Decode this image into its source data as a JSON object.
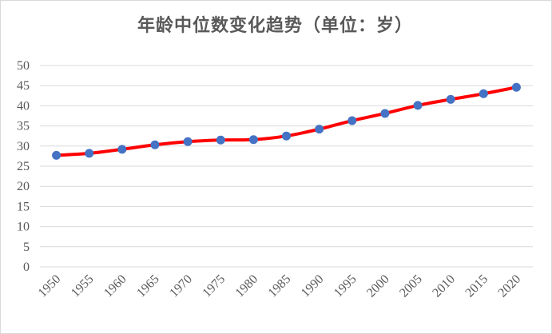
{
  "chart_data": {
    "type": "line",
    "title": "年龄中位数变化趋势（单位：岁）",
    "xlabel": "",
    "ylabel": "",
    "categories": [
      "1950",
      "1955",
      "1960",
      "1965",
      "1970",
      "1975",
      "1980",
      "1985",
      "1990",
      "1995",
      "2000",
      "2005",
      "2010",
      "2015",
      "2020"
    ],
    "series": [
      {
        "values": [
          27.7,
          28.2,
          29.2,
          30.3,
          31.1,
          31.5,
          31.6,
          32.5,
          34.2,
          36.3,
          38.1,
          40.1,
          41.6,
          43.0,
          44.6
        ]
      }
    ],
    "ylim": [
      0,
      50
    ],
    "yticks": [
      0,
      5,
      10,
      15,
      20,
      25,
      30,
      35,
      40,
      45,
      50
    ],
    "grid": true,
    "legend": "none",
    "line_color": "#ff0000",
    "marker_color": "#4472c4",
    "grid_color": "#d9d9d9"
  }
}
